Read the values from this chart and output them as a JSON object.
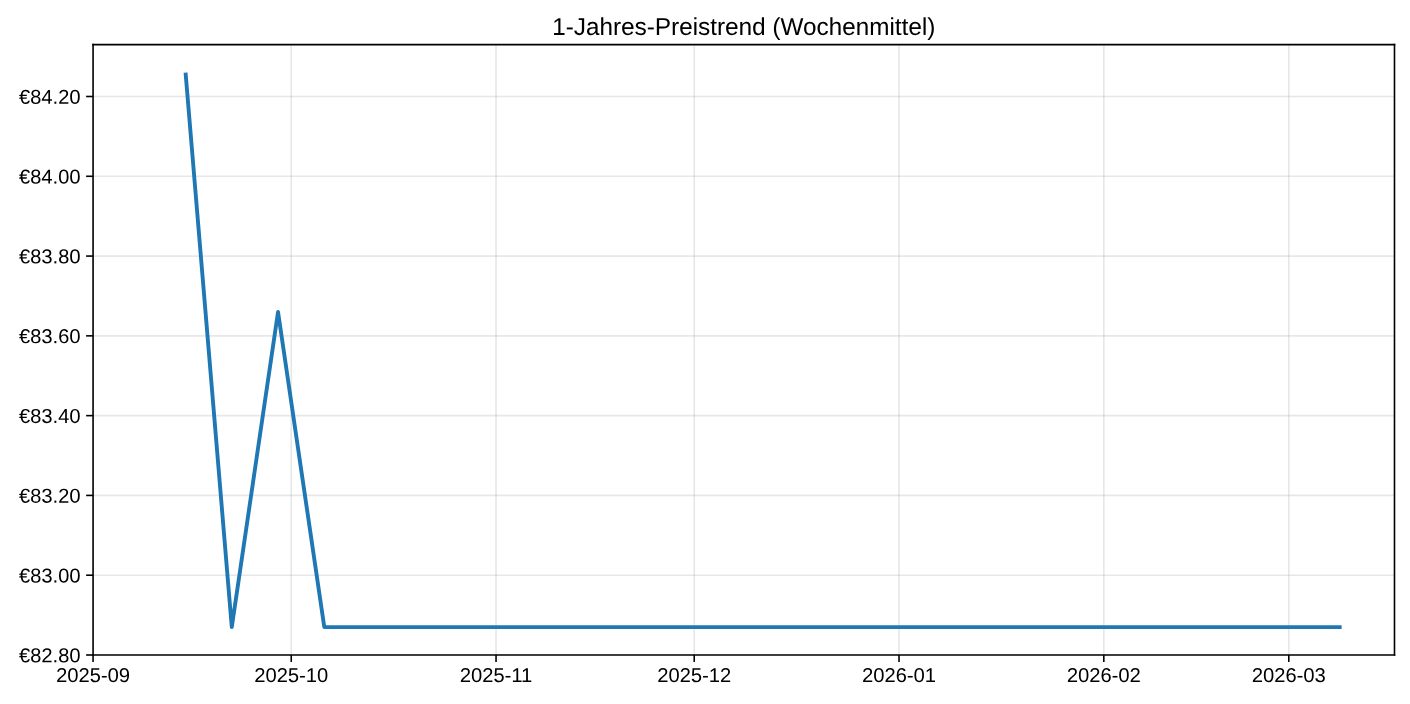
{
  "chart_data": {
    "type": "line",
    "title": "1-Jahres-Preistrend (Wochenmittel)",
    "x": [
      "2025-09-15",
      "2025-09-22",
      "2025-09-29",
      "2025-10-06",
      "2025-10-13",
      "2025-10-20",
      "2025-10-27",
      "2025-11-03",
      "2025-11-10",
      "2025-11-17",
      "2025-11-24",
      "2025-12-01",
      "2025-12-08",
      "2025-12-15",
      "2025-12-22",
      "2025-12-29",
      "2026-01-05",
      "2026-01-12",
      "2026-01-19",
      "2026-01-26",
      "2026-02-02",
      "2026-02-09",
      "2026-02-16",
      "2026-02-23",
      "2026-03-02",
      "2026-03-09"
    ],
    "series": [
      {
        "color": "#1f77b4",
        "values": [
          84.26,
          82.87,
          83.66,
          82.87,
          82.87,
          82.87,
          82.87,
          82.87,
          82.87,
          82.87,
          82.87,
          82.87,
          82.87,
          82.87,
          82.87,
          82.87,
          82.87,
          82.87,
          82.87,
          82.87,
          82.87,
          82.87,
          82.87,
          82.87,
          82.87,
          82.87
        ]
      }
    ],
    "xlim": [
      "2025-09-01",
      "2026-03-17"
    ],
    "xticks": [
      "2025-09",
      "2025-10",
      "2025-11",
      "2025-12",
      "2026-01",
      "2026-02",
      "2026-03"
    ],
    "ylim": [
      82.8,
      84.33
    ],
    "yticks": [
      {
        "value": 82.8,
        "label": "€82.80"
      },
      {
        "value": 83.0,
        "label": "€83.00"
      },
      {
        "value": 83.2,
        "label": "€83.20"
      },
      {
        "value": 83.4,
        "label": "€83.40"
      },
      {
        "value": 83.6,
        "label": "€83.60"
      },
      {
        "value": 83.8,
        "label": "€83.80"
      },
      {
        "value": 84.0,
        "label": "€84.00"
      },
      {
        "value": 84.2,
        "label": "€84.20"
      }
    ],
    "grid": true,
    "line_style": "solid"
  }
}
